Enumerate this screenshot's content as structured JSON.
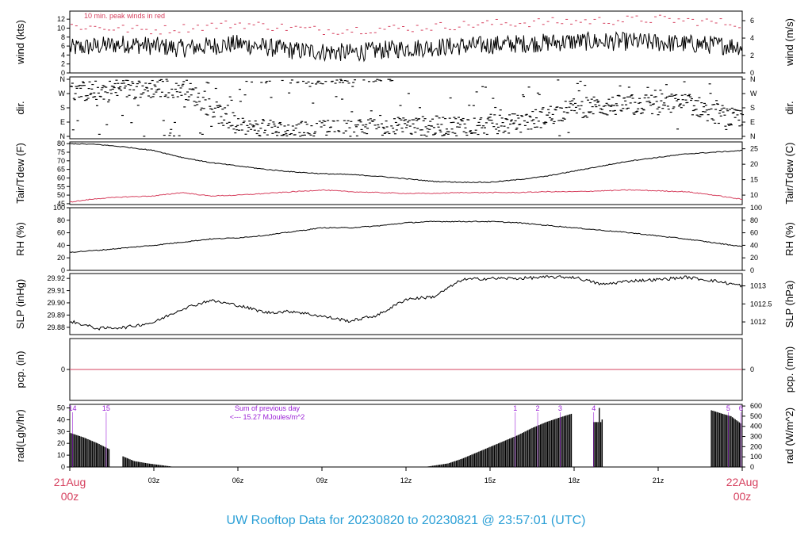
{
  "footer_title": "UW Rooftop Data for 20230820  to  20230821 @ 23:57:01  (UTC)",
  "colors": {
    "series": "#000000",
    "peak_wind": "#d6405e",
    "dewpoint": "#d6405e",
    "precip_zero": "#d6405e",
    "date_label": "#d6405e",
    "annotation": "#9a1fd6",
    "footer": "#2a9fd6"
  },
  "x_axis": {
    "ticks": [
      "21Aug\n00z",
      "03z",
      "06z",
      "09z",
      "12z",
      "15z",
      "18z",
      "21z",
      "22Aug\n00z"
    ],
    "start_label": {
      "line1": "21Aug",
      "line2": "00z"
    },
    "end_label": {
      "line1": "22Aug",
      "line2": "00z"
    },
    "hour_labels": [
      "03z",
      "06z",
      "09z",
      "12z",
      "15z",
      "18z",
      "21z"
    ]
  },
  "chart_data": [
    {
      "type": "line",
      "ylabel_left": "wind (kts)",
      "ylabel_right": "wind (m/s)",
      "ylim": [
        0,
        13.8
      ],
      "yticks_left": [
        "0",
        "2",
        "4",
        "6",
        "8",
        "10",
        "12"
      ],
      "yticks_right": [
        "0",
        "2",
        "4",
        "6"
      ],
      "annotation": "10 min. peak winds in red",
      "series": [
        {
          "values_hours": [
            0,
            2,
            4,
            6,
            8,
            10,
            12,
            14,
            16,
            18,
            20,
            22,
            24
          ],
          "values": [
            5.5,
            6.5,
            5.5,
            6.5,
            5,
            4.5,
            5.5,
            6,
            6.5,
            7,
            7,
            6.5,
            6
          ]
        },
        {
          "values_hours": [
            0,
            3,
            6,
            9,
            12,
            15,
            18,
            21,
            24
          ],
          "values": [
            10.5,
            9.5,
            11,
            9.5,
            10,
            11,
            11.5,
            12,
            11
          ]
        }
      ]
    },
    {
      "type": "scatter",
      "ylabel_left": "dir.",
      "ylabel_right": "dir.",
      "yticks_left": [
        "N",
        "E",
        "S",
        "W",
        "N"
      ],
      "yticks_right": [
        "N",
        "E",
        "S",
        "W",
        "N"
      ],
      "y_values_deg": [
        0,
        90,
        180,
        270,
        360
      ],
      "series": [
        {
          "x_hours": [
            0,
            2,
            4,
            6,
            8,
            10,
            12,
            14,
            16,
            18,
            20,
            22,
            24
          ],
          "values": [
            280,
            300,
            310,
            50,
            30,
            40,
            60,
            70,
            80,
            180,
            200,
            210,
            90
          ]
        }
      ]
    },
    {
      "type": "line",
      "ylabel_left": "Tair/Tdew (F)",
      "ylabel_right": "Tair/Tdew (C)",
      "ylim": [
        44.5,
        81
      ],
      "yticks_left": [
        "45",
        "50",
        "55",
        "60",
        "65",
        "70",
        "75",
        "80"
      ],
      "yticks_right": [
        "10",
        "15",
        "20",
        "25"
      ],
      "series": [
        {
          "x_hours": [
            0,
            1,
            2,
            3,
            4,
            5,
            6,
            7,
            8,
            9,
            10,
            11,
            12,
            13,
            14,
            15,
            16,
            17,
            18,
            19,
            20,
            21,
            22,
            23,
            24
          ],
          "values": [
            80,
            79.5,
            78,
            76,
            72,
            69,
            67,
            65,
            63.5,
            62.5,
            62,
            61,
            59.5,
            58,
            57.5,
            57.5,
            59,
            61,
            64,
            67,
            70,
            72,
            74,
            75,
            76
          ]
        },
        {
          "x_hours": [
            0,
            1,
            2,
            3,
            4,
            5,
            6,
            7,
            8,
            9,
            10,
            11,
            12,
            13,
            14,
            15,
            16,
            17,
            18,
            19,
            20,
            21,
            22,
            23,
            24
          ],
          "values": [
            46,
            48,
            49,
            49.5,
            51.5,
            49.5,
            50,
            51,
            52,
            53,
            52,
            51.5,
            51,
            51,
            51.5,
            51.5,
            51.5,
            52,
            52,
            52.5,
            53,
            52.5,
            52,
            50,
            47.5
          ]
        }
      ]
    },
    {
      "type": "line",
      "ylabel_left": "RH (%)",
      "ylabel_right": "RH (%)",
      "ylim": [
        0,
        100
      ],
      "yticks_left": [
        "0",
        "20",
        "40",
        "60",
        "80",
        "100"
      ],
      "yticks_right": [
        "0",
        "20",
        "40",
        "60",
        "80",
        "100"
      ],
      "series": [
        {
          "x_hours": [
            0,
            1,
            2,
            3,
            4,
            5,
            6,
            7,
            8,
            9,
            10,
            11,
            12,
            13,
            14,
            15,
            16,
            17,
            18,
            19,
            20,
            21,
            22,
            23,
            24
          ],
          "values": [
            29,
            32,
            36,
            40,
            45,
            50,
            52,
            56,
            62,
            68,
            68,
            71,
            76,
            78,
            78,
            78,
            76,
            72,
            68,
            64,
            60,
            55,
            50,
            44,
            38
          ]
        }
      ]
    },
    {
      "type": "line",
      "ylabel_left": "SLP (inHg)",
      "ylabel_right": "SLP (hPa)",
      "ylim": [
        29.874,
        29.924
      ],
      "yticks_left": [
        "29.88",
        "29.89",
        "29.90",
        "29.91",
        "29.92"
      ],
      "yticks_right": [
        "1012",
        "1012.5",
        "1013"
      ],
      "series": [
        {
          "x_hours": [
            0,
            1,
            2,
            3,
            4,
            5,
            6,
            7,
            8,
            9,
            10,
            11,
            12,
            13,
            14,
            15,
            16,
            17,
            18,
            19,
            20,
            21,
            22,
            23,
            24
          ],
          "values": [
            29.885,
            29.879,
            29.88,
            29.884,
            29.895,
            29.902,
            29.898,
            29.892,
            29.893,
            29.889,
            29.885,
            29.89,
            29.903,
            29.905,
            29.919,
            29.92,
            29.92,
            29.921,
            29.921,
            29.915,
            29.918,
            29.919,
            29.921,
            29.918,
            29.914
          ]
        }
      ]
    },
    {
      "type": "line",
      "ylabel_left": "pcp. (in)",
      "ylabel_right": "pcp. (mm)",
      "yticks_left": [
        "0"
      ],
      "yticks_right": [
        "0"
      ],
      "series": [
        {
          "x_hours": [
            0,
            24
          ],
          "values": [
            0,
            0
          ]
        }
      ]
    },
    {
      "type": "bar",
      "ylabel_left": "rad(Lgly/hr)",
      "ylabel_right": "rad (W/m^2)",
      "ylim": [
        0,
        53
      ],
      "yticks_left": [
        "0",
        "10",
        "20",
        "30",
        "40",
        "50"
      ],
      "yticks_right": [
        "0",
        "100",
        "200",
        "300",
        "400",
        "500",
        "600"
      ],
      "annotation_line1": "Sum of previous day",
      "annotation_line2": "<--- 15.27 MJoules/m^2",
      "top_markers": [
        {
          "hour": 0.1,
          "label": "14"
        },
        {
          "hour": 1.3,
          "label": "15"
        },
        {
          "hour": 15.9,
          "label": "1"
        },
        {
          "hour": 16.7,
          "label": "2"
        },
        {
          "hour": 17.5,
          "label": "3"
        },
        {
          "hour": 18.7,
          "label": "4"
        },
        {
          "hour": 23.5,
          "label": "5"
        },
        {
          "hour": 23.95,
          "label": "6"
        }
      ],
      "series": [
        {
          "x_hours": [
            0,
            0.5,
            1,
            1.5,
            1.7,
            2.3,
            2.8,
            3.6,
            12.8,
            13.5,
            14,
            14.5,
            15,
            15.5,
            16,
            16.5,
            17,
            17.5,
            17.9,
            18.7,
            18.9,
            22.9,
            23.3,
            23.6,
            24
          ],
          "values": [
            29,
            25,
            20,
            14,
            11,
            5,
            3,
            0.5,
            0.5,
            3,
            7,
            12,
            17,
            22,
            27,
            33,
            38,
            42,
            45,
            50,
            40,
            48,
            45,
            43,
            36
          ]
        }
      ]
    }
  ]
}
